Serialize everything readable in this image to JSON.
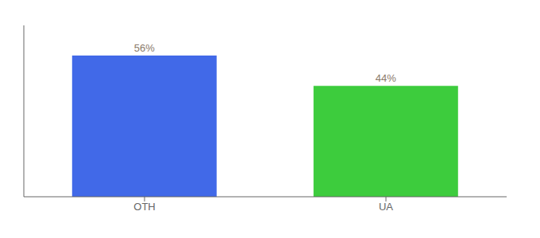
{
  "chart_data": {
    "type": "bar",
    "categories": [
      "OTH",
      "UA"
    ],
    "values": [
      56,
      44
    ],
    "value_labels": [
      "56%",
      "44%"
    ],
    "colors": [
      "#4169e8",
      "#3dcc3d"
    ],
    "ylim": [
      0,
      68
    ],
    "grid": false,
    "data_labels": true,
    "tick_labels": "x"
  }
}
